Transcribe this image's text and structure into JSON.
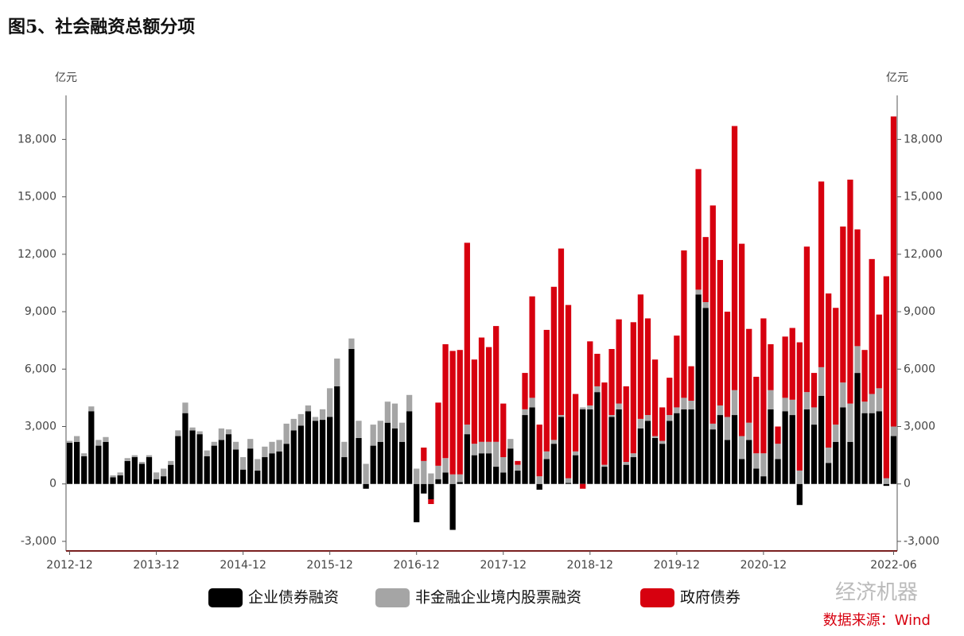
{
  "chart_data": {
    "type": "stacked_bar",
    "title": "图5、社会融资总额分项",
    "y_unit": "亿元",
    "y2_unit": "亿元",
    "source": "数据来源：Wind",
    "watermark": "经济机器",
    "categories": [
      "2012-12",
      null,
      null,
      null,
      null,
      null,
      null,
      null,
      null,
      null,
      null,
      null,
      "2013-12",
      null,
      null,
      null,
      null,
      null,
      null,
      null,
      null,
      null,
      null,
      null,
      "2014-12",
      null,
      null,
      null,
      null,
      null,
      null,
      null,
      null,
      null,
      null,
      null,
      "2015-12",
      null,
      null,
      null,
      null,
      null,
      null,
      null,
      null,
      null,
      null,
      null,
      "2016-12",
      null,
      null,
      null,
      null,
      null,
      null,
      null,
      null,
      null,
      null,
      null,
      "2017-12",
      null,
      null,
      null,
      null,
      null,
      null,
      null,
      null,
      null,
      null,
      null,
      "2018-12",
      null,
      null,
      null,
      null,
      null,
      null,
      null,
      null,
      null,
      null,
      null,
      "2019-12",
      null,
      null,
      null,
      null,
      null,
      null,
      null,
      null,
      null,
      null,
      null,
      "2020-12",
      null,
      null,
      null,
      null,
      null,
      null,
      null,
      null,
      null,
      null,
      null,
      null,
      null,
      null,
      null,
      null,
      null,
      "2022-06"
    ],
    "series": [
      {
        "name": "企业债券融资",
        "color": "#000000",
        "values": [
          2150,
          2200,
          1450,
          3800,
          2000,
          2200,
          350,
          450,
          1200,
          1400,
          1050,
          1400,
          250,
          400,
          1000,
          2500,
          3700,
          2800,
          2600,
          1450,
          2000,
          2300,
          2600,
          1800,
          750,
          1850,
          700,
          1400,
          1600,
          1700,
          2100,
          2800,
          3050,
          3800,
          3300,
          3350,
          3500,
          5100,
          1400,
          7050,
          2400,
          -250,
          2000,
          2200,
          3200,
          2900,
          2200,
          3800,
          -2000,
          -500,
          -800,
          250,
          600,
          -2400,
          100,
          2600,
          1500,
          1600,
          1600,
          900,
          600,
          1850,
          700,
          3600,
          4000,
          -300,
          1300,
          2100,
          3500,
          50,
          1500,
          3900,
          3900,
          4800,
          900,
          3500,
          3900,
          1000,
          1400,
          2900,
          3300,
          2400,
          2100,
          3300,
          3700,
          3900,
          3900,
          9900,
          9200,
          2850,
          3600,
          2300,
          3600,
          1300,
          2300,
          800,
          400,
          3900,
          1300,
          3800,
          3600,
          -1100,
          3900,
          3100,
          4600,
          1100,
          2200,
          4000,
          2200,
          5800,
          3700,
          3700,
          3800,
          -100,
          2500
        ]
      },
      {
        "name": "非金融企业境内股票融资",
        "color": "#a5a5a5",
        "values": [
          100,
          300,
          150,
          250,
          300,
          250,
          100,
          150,
          150,
          100,
          100,
          100,
          350,
          400,
          200,
          300,
          550,
          150,
          150,
          300,
          200,
          600,
          250,
          400,
          650,
          500,
          600,
          550,
          600,
          600,
          1050,
          600,
          600,
          300,
          200,
          550,
          1500,
          1450,
          800,
          550,
          900,
          1050,
          1100,
          1100,
          1100,
          1300,
          1000,
          850,
          800,
          1200,
          550,
          700,
          750,
          500,
          400,
          500,
          600,
          600,
          600,
          1300,
          800,
          500,
          300,
          300,
          500,
          400,
          400,
          200,
          100,
          250,
          200,
          100,
          200,
          300,
          100,
          100,
          300,
          150,
          200,
          500,
          300,
          100,
          150,
          300,
          300,
          600,
          450,
          250,
          300,
          300,
          500,
          1200,
          1300,
          1200,
          900,
          800,
          1200,
          1000,
          800,
          700,
          800,
          700,
          900,
          900,
          1500,
          800,
          900,
          1300,
          2000,
          1400,
          600,
          1000,
          1200,
          300,
          500
        ]
      },
      {
        "name": "政府债券",
        "color": "#d7000f",
        "values": [
          0,
          0,
          0,
          0,
          0,
          0,
          0,
          0,
          0,
          0,
          0,
          0,
          0,
          0,
          0,
          0,
          0,
          0,
          0,
          0,
          0,
          0,
          0,
          0,
          0,
          0,
          0,
          0,
          0,
          0,
          0,
          0,
          0,
          0,
          0,
          0,
          0,
          0,
          0,
          0,
          0,
          0,
          0,
          0,
          0,
          0,
          0,
          0,
          0,
          700,
          -250,
          3300,
          5950,
          6450,
          6500,
          9500,
          4400,
          5450,
          4950,
          6050,
          2800,
          0,
          200,
          1900,
          5300,
          2700,
          6350,
          8000,
          8700,
          9050,
          3000,
          -250,
          3350,
          1700,
          4300,
          3450,
          4400,
          3950,
          6850,
          6500,
          5050,
          4000,
          1750,
          1950,
          3750,
          7700,
          1800,
          6300,
          3400,
          11400,
          7600,
          5500,
          13800,
          10050,
          4900,
          4000,
          7050,
          2400,
          900,
          3200,
          3750,
          6700,
          7600,
          1800,
          9700,
          8050,
          6100,
          8150,
          11700,
          6100,
          2700,
          7050,
          3850,
          10550,
          16200
        ]
      }
    ],
    "ylim": [
      -3500,
      20300
    ],
    "y2lim": [
      -3500,
      20300
    ],
    "yticks": [
      {
        "value": -3000,
        "label": "-3,000"
      },
      0,
      {
        "value": 3000,
        "label": "3,000"
      },
      {
        "value": 6000,
        "label": "6,000"
      },
      {
        "value": 9000,
        "label": "9,000"
      },
      {
        "value": 12000,
        "label": "12,000"
      },
      {
        "value": 15000,
        "label": "15,000"
      },
      {
        "value": 18000,
        "label": "18,000"
      }
    ],
    "y2ticks": [
      {
        "value": -3000,
        "label": "-3,000"
      },
      0,
      {
        "value": 3000,
        "label": "3,000"
      },
      {
        "value": 6000,
        "label": "6,000"
      },
      {
        "value": 9000,
        "label": "9,000"
      },
      {
        "value": 12000,
        "label": "12,000"
      },
      {
        "value": 15000,
        "label": "15,000"
      },
      {
        "value": 18000,
        "label": "18,000"
      }
    ]
  }
}
